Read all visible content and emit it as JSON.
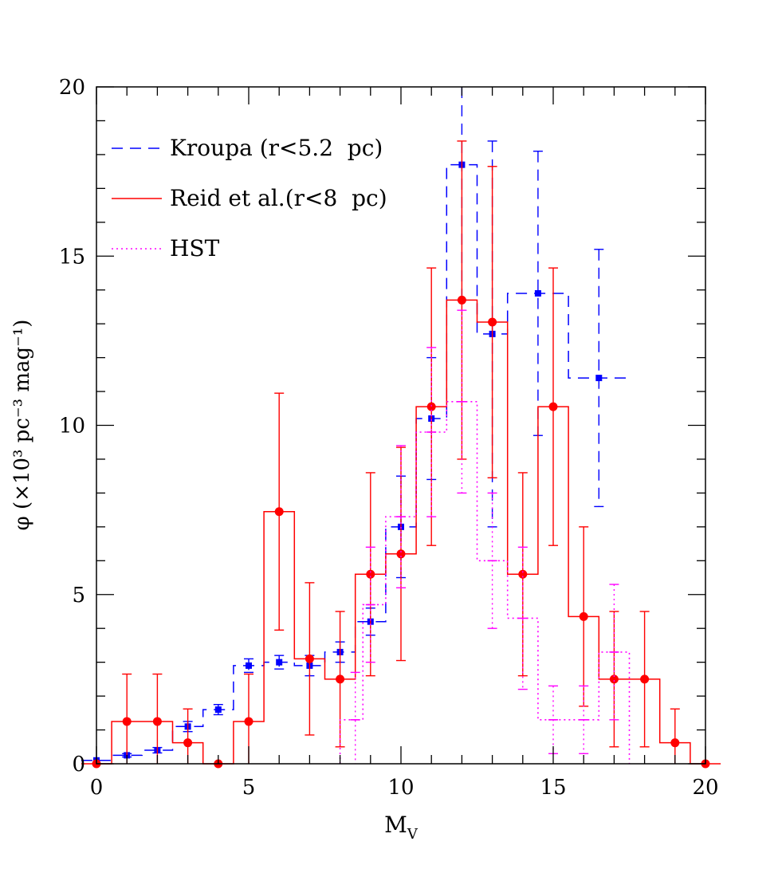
{
  "chart_data": {
    "type": "line",
    "xlabel": "M",
    "xlabel_sub": "V",
    "ylabel": "φ (×10³ pc⁻³ mag⁻¹)",
    "xlim": [
      0,
      20
    ],
    "ylim": [
      0,
      20
    ],
    "x_ticks": [
      0,
      5,
      10,
      15,
      20
    ],
    "y_ticks": [
      0,
      5,
      10,
      15,
      20
    ],
    "legend_position": "top-left",
    "series": [
      {
        "name": "Kroupa (r<5.2  pc)",
        "style": "dashed",
        "color": "#0000ff",
        "marker": "square",
        "x": [
          0,
          1,
          2,
          3,
          4,
          5,
          6,
          7,
          8,
          9,
          10,
          11,
          12,
          13,
          14.5,
          16.5
        ],
        "y": [
          0.1,
          0.25,
          0.4,
          1.1,
          1.6,
          2.9,
          3.0,
          2.9,
          3.3,
          4.2,
          7.0,
          10.2,
          17.7,
          12.7,
          13.9,
          11.4
        ],
        "err": [
          0,
          0.05,
          0.08,
          0.15,
          0.15,
          0.2,
          0.2,
          0.3,
          0.3,
          0.4,
          1.5,
          1.8,
          4.0,
          5.7,
          4.2,
          3.8
        ],
        "bin_left": [
          -0.5,
          0.5,
          1.5,
          2.5,
          3.5,
          4.5,
          5.5,
          6.5,
          7.5,
          8.5,
          9.5,
          10.5,
          11.5,
          12.5,
          13.5,
          15.5
        ],
        "bin_right": [
          0.5,
          1.5,
          2.5,
          3.5,
          4.5,
          5.5,
          6.5,
          7.5,
          8.5,
          9.5,
          10.5,
          11.5,
          12.5,
          13.5,
          15.5,
          17.5
        ]
      },
      {
        "name": "Reid et al.(r<8  pc)",
        "style": "solid",
        "color": "#ff0000",
        "marker": "circle",
        "x": [
          0,
          1,
          2,
          3,
          4,
          5,
          6,
          7,
          8,
          9,
          10,
          11,
          12,
          13,
          14,
          15,
          16,
          17,
          18,
          19,
          20
        ],
        "y": [
          0,
          1.25,
          1.25,
          0.62,
          0,
          1.25,
          7.45,
          3.1,
          2.5,
          5.6,
          6.2,
          10.55,
          13.7,
          13.05,
          5.6,
          10.55,
          4.35,
          2.5,
          2.5,
          0.62,
          0
        ],
        "err": [
          0,
          1.4,
          1.4,
          1.0,
          0,
          1.4,
          3.5,
          2.25,
          2.0,
          3.0,
          3.15,
          4.1,
          4.7,
          4.6,
          3.0,
          4.1,
          2.65,
          2.0,
          2.0,
          1.0,
          0
        ]
      },
      {
        "name": "HST",
        "style": "dotted",
        "color": "#ff00ff",
        "marker": "cross",
        "x": [
          8.5,
          9,
          10,
          11,
          12,
          13,
          14,
          15,
          16,
          17
        ],
        "y": [
          1.3,
          4.7,
          7.3,
          9.8,
          10.7,
          6.0,
          4.3,
          1.3,
          1.3,
          3.3
        ],
        "err": [
          1.4,
          1.7,
          2.1,
          2.5,
          2.7,
          2.0,
          2.1,
          1.0,
          1.0,
          2.0
        ],
        "bin_left": [
          8.0,
          8.75,
          9.5,
          10.5,
          11.5,
          12.5,
          13.5,
          14.5,
          15.5,
          16.5
        ],
        "bin_right": [
          8.75,
          9.5,
          10.5,
          11.5,
          12.5,
          13.5,
          14.5,
          15.5,
          16.5,
          17.5
        ]
      }
    ]
  }
}
